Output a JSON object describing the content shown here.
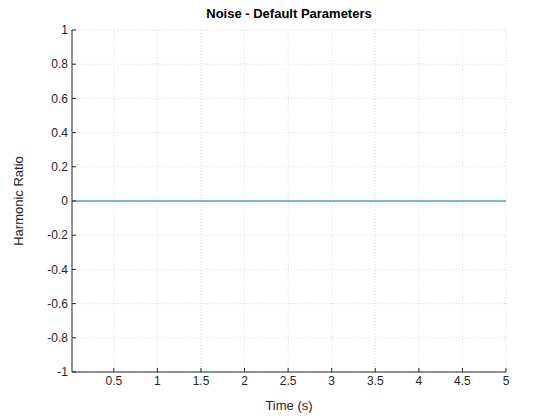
{
  "chart_data": {
    "type": "line",
    "title": "Noise - Default Parameters",
    "x_label": "Time (s)",
    "y_label": "Harmonic Ratio",
    "x": [
      0.02,
      1,
      2,
      3,
      4,
      5
    ],
    "series": [
      {
        "name": "Harmonic Ratio",
        "color": "#0072bd",
        "values": [
          0,
          0,
          0,
          0,
          0,
          0
        ]
      }
    ],
    "xlim": [
      0.02,
      5
    ],
    "xticks": [
      0.5,
      1,
      1.5,
      2,
      2.5,
      3,
      3.5,
      4,
      4.5,
      5
    ],
    "ylim": [
      -1,
      1
    ],
    "yticks": [
      -1,
      -0.8,
      -0.6,
      -0.4,
      -0.2,
      0,
      0.2,
      0.4,
      0.6,
      0.8,
      1
    ],
    "grid": true
  }
}
